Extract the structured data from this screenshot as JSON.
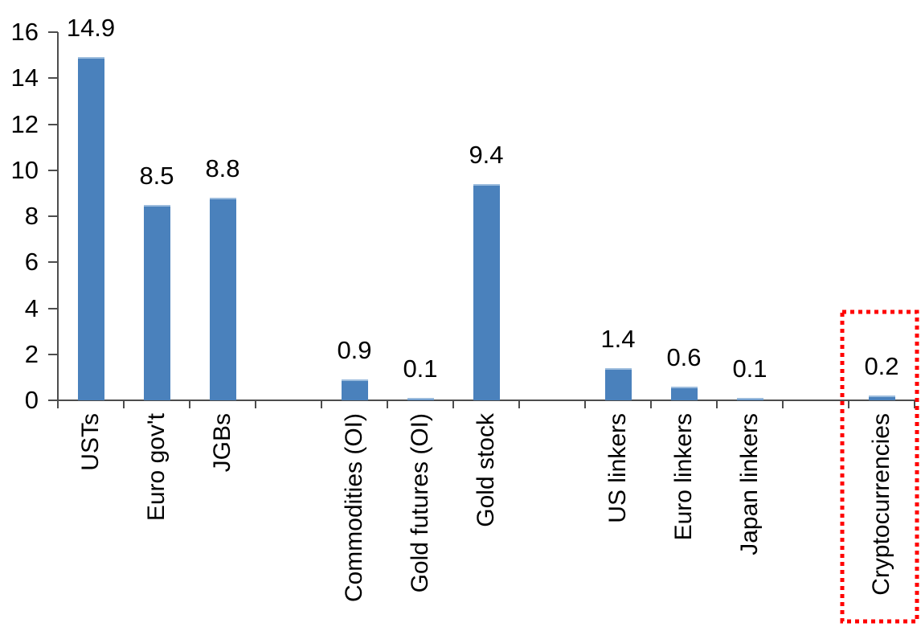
{
  "chart_data": {
    "type": "bar",
    "title": "",
    "xlabel": "",
    "ylabel": "",
    "categories": [
      "USTs",
      "Euro gov't",
      "JGBs",
      "Commodities (OI)",
      "Gold futures (OI)",
      "Gold stock",
      "US linkers",
      "Euro linkers",
      "Japan linkers",
      "Cryptocurrencies"
    ],
    "values": [
      14.9,
      8.5,
      8.8,
      0.9,
      0.1,
      9.4,
      1.4,
      0.6,
      0.1,
      0.2
    ],
    "data_labels": [
      "14.9",
      "8.5",
      "8.8",
      "0.9",
      "0.1",
      "9.4",
      "1.4",
      "0.6",
      "0.1",
      "0.2"
    ],
    "group_sizes": [
      3,
      3,
      3,
      1
    ],
    "ylim": [
      0,
      16
    ],
    "yticks": [
      "0",
      "2",
      "4",
      "6",
      "8",
      "10",
      "12",
      "14",
      "16"
    ],
    "grid": "off",
    "legend": "none",
    "bar_color": "#4a81bc",
    "bar_top_highlight": "#9cbcdd",
    "axis_color": "#4d4d4d",
    "text_color": "#000000",
    "highlight_box": {
      "category": "Cryptocurrencies",
      "color": "#ff0000",
      "style": "dotted"
    }
  }
}
